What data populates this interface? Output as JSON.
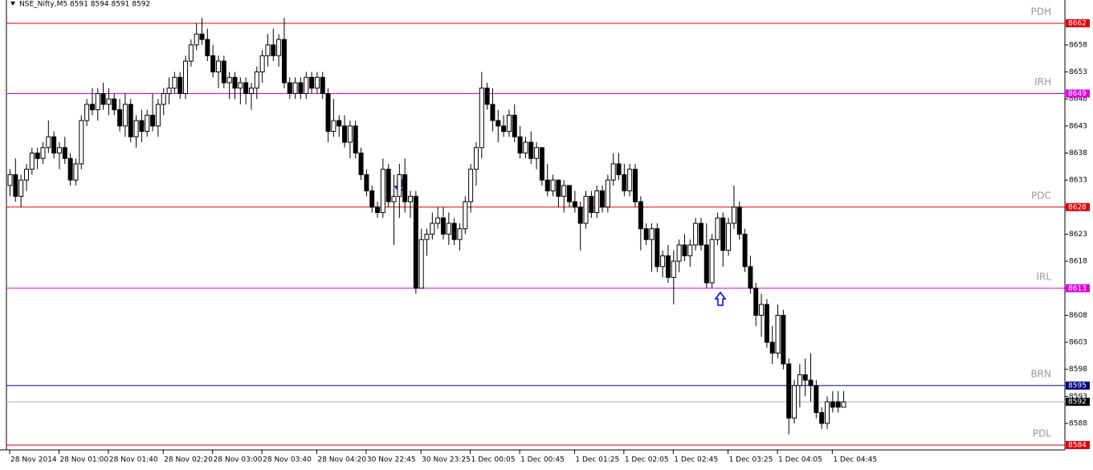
{
  "chart_data": {
    "type": "candlestick",
    "title": "NSE_Nifty,M5  8591 8594 8591 8592",
    "ylim": [
      8583.1,
      8666.3
    ],
    "yticks": [
      8658,
      8653,
      8648,
      8643,
      8638,
      8633,
      8628,
      8623,
      8618,
      8613,
      8608,
      8603,
      8598,
      8593,
      8588
    ],
    "xticks": [
      {
        "value": 0,
        "label": "28 Nov 2014"
      },
      {
        "value": 9,
        "label": "28 Nov 01:00"
      },
      {
        "value": 18,
        "label": "28 Nov 01:40"
      },
      {
        "value": 28,
        "label": "28 Nov 02:20"
      },
      {
        "value": 37,
        "label": "28 Nov 03:00"
      },
      {
        "value": 46,
        "label": "28 Nov 03:40"
      },
      {
        "value": 56,
        "label": "28 Nov 04:20"
      },
      {
        "value": 65,
        "label": "30 Nov 22:45"
      },
      {
        "value": 75,
        "label": "30 Nov 23:25"
      },
      {
        "value": 84,
        "label": "1 Dec 00:05"
      },
      {
        "value": 93,
        "label": "1 Dec 00:45"
      },
      {
        "value": 103,
        "label": "1 Dec 01:25"
      },
      {
        "value": 112,
        "label": "1 Dec 02:05"
      },
      {
        "value": 121,
        "label": "1 Dec 02:45"
      },
      {
        "value": 131,
        "label": "1 Dec 03:25"
      },
      {
        "value": 140,
        "label": "1 Dec 04:05"
      },
      {
        "value": 150,
        "label": "1 Dec 04:45"
      }
    ],
    "levels": [
      {
        "name": "PDH",
        "value": 8662,
        "color": "#e00000"
      },
      {
        "name": "IRH",
        "value": 8649,
        "color": "#e000e0"
      },
      {
        "name": "PDC",
        "value": 8628,
        "color": "#e00000"
      },
      {
        "name": "IRL",
        "value": 8613,
        "color": "#e000e0"
      },
      {
        "name": "BRN",
        "value": 8595,
        "color": "#000080"
      },
      {
        "name": "PDL",
        "value": 8584,
        "color": "#e00000"
      }
    ],
    "last_price": 8592,
    "candles": [
      [
        8632,
        8635,
        8630,
        8634
      ],
      [
        8634,
        8637,
        8629,
        8630
      ],
      [
        8630,
        8634,
        8628,
        8633
      ],
      [
        8633,
        8636,
        8631,
        8635
      ],
      [
        8635,
        8639,
        8634,
        8638
      ],
      [
        8638,
        8639,
        8635,
        8637
      ],
      [
        8637,
        8640,
        8636,
        8639
      ],
      [
        8639,
        8644,
        8638,
        8641
      ],
      [
        8641,
        8642,
        8637,
        8638
      ],
      [
        8638,
        8640,
        8635,
        8639
      ],
      [
        8639,
        8641,
        8636,
        8637
      ],
      [
        8637,
        8638,
        8632,
        8633
      ],
      [
        8633,
        8637,
        8632,
        8636
      ],
      [
        8636,
        8645,
        8635,
        8644
      ],
      [
        8644,
        8648,
        8643,
        8647
      ],
      [
        8647,
        8650,
        8645,
        8646
      ],
      [
        8646,
        8650,
        8644,
        8649
      ],
      [
        8649,
        8651,
        8646,
        8647
      ],
      [
        8647,
        8650,
        8645,
        8648
      ],
      [
        8648,
        8649,
        8645,
        8646
      ],
      [
        8646,
        8648,
        8642,
        8643
      ],
      [
        8643,
        8649,
        8641,
        8647
      ],
      [
        8647,
        8648,
        8640,
        8641
      ],
      [
        8641,
        8645,
        8639,
        8644
      ],
      [
        8644,
        8646,
        8640,
        8642
      ],
      [
        8642,
        8646,
        8641,
        8645
      ],
      [
        8645,
        8649,
        8642,
        8643
      ],
      [
        8643,
        8648,
        8641,
        8647
      ],
      [
        8647,
        8650,
        8645,
        8649
      ],
      [
        8649,
        8652,
        8647,
        8650
      ],
      [
        8650,
        8653,
        8649,
        8652
      ],
      [
        8652,
        8653,
        8648,
        8649
      ],
      [
        8649,
        8656,
        8648,
        8655
      ],
      [
        8655,
        8659,
        8654,
        8658
      ],
      [
        8658,
        8662,
        8657,
        8660
      ],
      [
        8660,
        8663,
        8658,
        8659
      ],
      [
        8659,
        8661,
        8655,
        8656
      ],
      [
        8656,
        8658,
        8652,
        8653
      ],
      [
        8653,
        8656,
        8650,
        8655
      ],
      [
        8655,
        8656,
        8650,
        8651
      ],
      [
        8651,
        8653,
        8648,
        8652
      ],
      [
        8652,
        8653,
        8648,
        8650
      ],
      [
        8650,
        8652,
        8647,
        8651
      ],
      [
        8651,
        8652,
        8647,
        8649
      ],
      [
        8649,
        8651,
        8646,
        8650
      ],
      [
        8650,
        8654,
        8648,
        8653
      ],
      [
        8653,
        8657,
        8651,
        8656
      ],
      [
        8656,
        8660,
        8654,
        8658
      ],
      [
        8658,
        8661,
        8655,
        8656
      ],
      [
        8656,
        8660,
        8654,
        8659
      ],
      [
        8659,
        8663,
        8650,
        8651
      ],
      [
        8651,
        8652,
        8648,
        8649
      ],
      [
        8649,
        8652,
        8648,
        8651
      ],
      [
        8651,
        8652,
        8648,
        8649
      ],
      [
        8649,
        8653,
        8648,
        8652
      ],
      [
        8652,
        8653,
        8649,
        8650
      ],
      [
        8650,
        8653,
        8649,
        8652
      ],
      [
        8652,
        8653,
        8648,
        8649
      ],
      [
        8649,
        8650,
        8640,
        8642
      ],
      [
        8642,
        8648,
        8641,
        8644
      ],
      [
        8644,
        8645,
        8641,
        8643
      ],
      [
        8643,
        8645,
        8639,
        8640
      ],
      [
        8640,
        8644,
        8637,
        8643
      ],
      [
        8643,
        8644,
        8637,
        8638
      ],
      [
        8638,
        8639,
        8633,
        8634
      ],
      [
        8634,
        8635,
        8630,
        8631
      ],
      [
        8631,
        8632,
        8627,
        8628
      ],
      [
        8628,
        8629,
        8626,
        8627
      ],
      [
        8627,
        8637,
        8626,
        8635
      ],
      [
        8635,
        8636,
        8628,
        8629
      ],
      [
        8629,
        8634,
        8621,
        8630
      ],
      [
        8630,
        8636,
        8626,
        8634
      ],
      [
        8634,
        8637,
        8627,
        8629
      ],
      [
        8629,
        8631,
        8626,
        8630
      ],
      [
        8630,
        8631,
        8612,
        8613
      ],
      [
        8613,
        8624,
        8613,
        8622
      ],
      [
        8622,
        8624,
        8619,
        8623
      ],
      [
        8623,
        8627,
        8622,
        8625
      ],
      [
        8625,
        8628,
        8624,
        8626
      ],
      [
        8626,
        8628,
        8622,
        8623
      ],
      [
        8623,
        8627,
        8621,
        8625
      ],
      [
        8625,
        8626,
        8621,
        8622
      ],
      [
        8622,
        8625,
        8620,
        8624
      ],
      [
        8624,
        8630,
        8623,
        8629
      ],
      [
        8629,
        8636,
        8627,
        8635
      ],
      [
        8635,
        8640,
        8632,
        8639
      ],
      [
        8639,
        8653,
        8637,
        8650
      ],
      [
        8650,
        8651,
        8646,
        8647
      ],
      [
        8647,
        8650,
        8642,
        8644
      ],
      [
        8644,
        8646,
        8640,
        8643
      ],
      [
        8643,
        8645,
        8641,
        8642
      ],
      [
        8642,
        8646,
        8641,
        8645
      ],
      [
        8645,
        8647,
        8640,
        8641
      ],
      [
        8641,
        8643,
        8637,
        8638
      ],
      [
        8638,
        8641,
        8637,
        8640
      ],
      [
        8640,
        8642,
        8636,
        8637
      ],
      [
        8637,
        8640,
        8635,
        8639
      ],
      [
        8639,
        8639,
        8632,
        8633
      ],
      [
        8633,
        8636,
        8630,
        8631
      ],
      [
        8631,
        8634,
        8630,
        8633
      ],
      [
        8633,
        8633,
        8628,
        8630
      ],
      [
        8630,
        8633,
        8627,
        8632
      ],
      [
        8632,
        8632,
        8628,
        8629
      ],
      [
        8629,
        8631,
        8627,
        8628
      ],
      [
        8628,
        8629,
        8620,
        8625
      ],
      [
        8625,
        8631,
        8624,
        8630
      ],
      [
        8630,
        8631,
        8626,
        8627
      ],
      [
        8627,
        8632,
        8626,
        8631
      ],
      [
        8631,
        8632,
        8627,
        8628
      ],
      [
        8628,
        8634,
        8627,
        8633
      ],
      [
        8633,
        8638,
        8632,
        8636
      ],
      [
        8636,
        8638,
        8633,
        8634
      ],
      [
        8634,
        8636,
        8630,
        8631
      ],
      [
        8631,
        8636,
        8630,
        8635
      ],
      [
        8635,
        8636,
        8628,
        8629
      ],
      [
        8629,
        8630,
        8620,
        8624
      ],
      [
        8624,
        8625,
        8621,
        8622
      ],
      [
        8622,
        8625,
        8616,
        8624
      ],
      [
        8624,
        8625,
        8616,
        8617
      ],
      [
        8617,
        8620,
        8615,
        8619
      ],
      [
        8619,
        8621,
        8614,
        8615
      ],
      [
        8615,
        8620,
        8610,
        8618
      ],
      [
        8618,
        8622,
        8616,
        8621
      ],
      [
        8621,
        8623,
        8618,
        8619
      ],
      [
        8619,
        8622,
        8617,
        8621
      ],
      [
        8621,
        8626,
        8620,
        8625
      ],
      [
        8625,
        8626,
        8620,
        8621
      ],
      [
        8621,
        8625,
        8613,
        8614
      ],
      [
        8614,
        8623,
        8613,
        8622
      ],
      [
        8622,
        8627,
        8621,
        8626
      ],
      [
        8626,
        8627,
        8617,
        8620
      ],
      [
        8620,
        8626,
        8619,
        8625
      ],
      [
        8625,
        8632,
        8624,
        8628
      ],
      [
        8628,
        8629,
        8622,
        8623
      ],
      [
        8623,
        8624,
        8616,
        8617
      ],
      [
        8617,
        8619,
        8612,
        8613
      ],
      [
        8613,
        8614,
        8606,
        8608
      ],
      [
        8608,
        8612,
        8604,
        8610
      ],
      [
        8610,
        8611,
        8602,
        8603
      ],
      [
        8603,
        8606,
        8599,
        8601
      ],
      [
        8601,
        8610,
        8600,
        8608
      ],
      [
        8608,
        8609,
        8598,
        8599
      ],
      [
        8599,
        8600,
        8586,
        8589
      ],
      [
        8589,
        8596,
        8588,
        8595
      ],
      [
        8595,
        8599,
        8591,
        8597
      ],
      [
        8597,
        8600,
        8593,
        8596
      ],
      [
        8596,
        8601,
        8592,
        8595
      ],
      [
        8595,
        8596,
        8589,
        8590
      ],
      [
        8590,
        8591,
        8587,
        8588
      ],
      [
        8588,
        8593,
        8587,
        8592
      ],
      [
        8592,
        8594,
        8590,
        8591
      ],
      [
        8592,
        8594,
        8590,
        8591
      ],
      [
        8591,
        8594,
        8591,
        8592
      ]
    ]
  }
}
